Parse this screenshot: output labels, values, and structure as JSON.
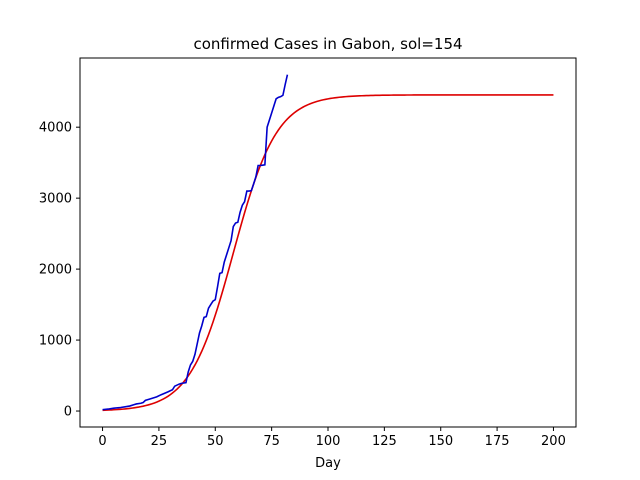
{
  "chart_data": {
    "type": "line",
    "title": "confirmed Cases in Gabon, sol=154",
    "xlabel": "Day",
    "ylabel": "",
    "xlim": [
      -10,
      210
    ],
    "ylim": [
      -225,
      4975
    ],
    "x_ticks": [
      0,
      25,
      50,
      75,
      100,
      125,
      150,
      175,
      200
    ],
    "y_ticks": [
      0,
      1000,
      2000,
      3000,
      4000
    ],
    "grid": false,
    "series": [
      {
        "color": "#0000cc",
        "x": [
          0,
          3,
          5,
          8,
          10,
          12,
          14,
          15,
          17,
          18,
          19,
          21,
          24,
          26,
          29,
          31,
          32,
          34,
          35,
          37,
          38,
          39,
          40,
          41,
          42,
          43,
          44,
          45,
          46,
          47,
          48,
          49,
          50,
          51,
          52,
          53,
          54,
          55,
          56,
          57,
          58,
          59,
          60,
          61,
          62,
          63,
          64,
          65,
          66,
          67,
          68,
          69,
          70,
          71,
          72,
          73,
          74,
          75,
          76,
          77,
          78,
          79,
          80,
          81,
          82
        ],
        "y": [
          20,
          30,
          40,
          50,
          60,
          70,
          90,
          100,
          110,
          120,
          150,
          170,
          200,
          230,
          270,
          300,
          350,
          380,
          390,
          400,
          550,
          650,
          700,
          800,
          950,
          1100,
          1200,
          1320,
          1330,
          1450,
          1500,
          1550,
          1570,
          1750,
          1940,
          1950,
          2100,
          2200,
          2300,
          2400,
          2600,
          2650,
          2660,
          2800,
          2900,
          2950,
          3100,
          3100,
          3105,
          3200,
          3300,
          3460,
          3460,
          3465,
          3470,
          4000,
          4100,
          4200,
          4300,
          4400,
          4420,
          4430,
          4450,
          4600,
          4740
        ]
      },
      {
        "color": "#dd0000",
        "model": "logistic",
        "K": 4455,
        "r": 0.104,
        "t0": 58,
        "x_range": [
          0,
          200
        ]
      }
    ]
  }
}
